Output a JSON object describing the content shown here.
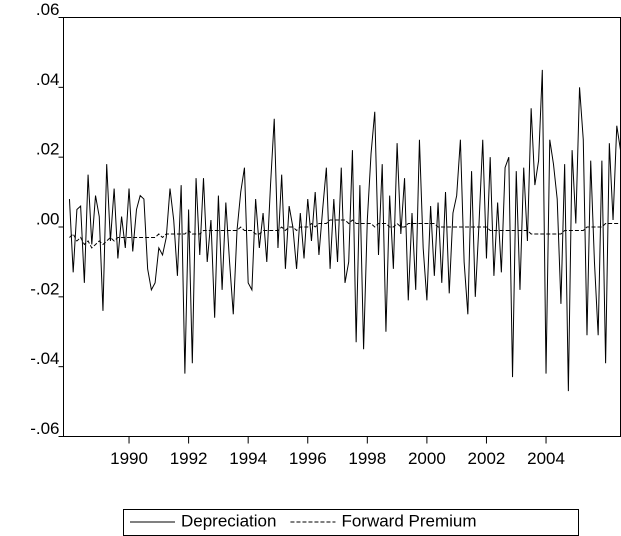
{
  "chart_data": {
    "type": "line",
    "x": [
      1988,
      1988.125,
      1988.25,
      1988.375,
      1988.5,
      1988.625,
      1988.75,
      1988.875,
      1989,
      1989.125,
      1989.25,
      1989.375,
      1989.5,
      1989.625,
      1989.75,
      1989.875,
      1990,
      1990.125,
      1990.25,
      1990.375,
      1990.5,
      1990.625,
      1990.75,
      1990.875,
      1991,
      1991.125,
      1991.25,
      1991.375,
      1991.5,
      1991.625,
      1991.75,
      1991.875,
      1992,
      1992.125,
      1992.25,
      1992.375,
      1992.5,
      1992.625,
      1992.75,
      1992.875,
      1993,
      1993.125,
      1993.25,
      1993.375,
      1993.5,
      1993.625,
      1993.75,
      1993.875,
      1994,
      1994.125,
      1994.25,
      1994.375,
      1994.5,
      1994.625,
      1994.75,
      1994.875,
      1995,
      1995.125,
      1995.25,
      1995.375,
      1995.5,
      1995.625,
      1995.75,
      1995.875,
      1996,
      1996.125,
      1996.25,
      1996.375,
      1996.5,
      1996.625,
      1996.75,
      1996.875,
      1997,
      1997.125,
      1997.25,
      1997.375,
      1997.5,
      1997.625,
      1997.75,
      1997.875,
      1998,
      1998.125,
      1998.25,
      1998.375,
      1998.5,
      1998.625,
      1998.75,
      1998.875,
      1999,
      1999.125,
      1999.25,
      1999.375,
      1999.5,
      1999.625,
      1999.75,
      1999.875,
      2000,
      2000.125,
      2000.25,
      2000.375,
      2000.5,
      2000.625,
      2000.75,
      2000.875,
      2001,
      2001.125,
      2001.25,
      2001.375,
      2001.5,
      2001.625,
      2001.75,
      2001.875,
      2002,
      2002.125,
      2002.25,
      2002.375,
      2002.5,
      2002.625,
      2002.75,
      2002.875,
      2003,
      2003.125,
      2003.25,
      2003.375,
      2003.5,
      2003.625,
      2003.75,
      2003.875,
      2004,
      2004.125,
      2004.25,
      2004.375,
      2004.5,
      2004.625,
      2004.75,
      2004.875,
      2005,
      2005.125,
      2005.25,
      2005.375,
      2005.5,
      2005.625,
      2005.75,
      2005.875,
      2006,
      2006.125,
      2006.25,
      2006.375,
      2006.5
    ],
    "series": [
      {
        "name": "Depreciation",
        "color": "#000000",
        "dash": "solid",
        "values": [
          0.008,
          -0.013,
          0.005,
          0.006,
          -0.016,
          0.015,
          -0.005,
          0.009,
          0.003,
          -0.024,
          0.018,
          -0.004,
          0.011,
          -0.009,
          0.003,
          -0.006,
          0.011,
          -0.007,
          0.005,
          0.009,
          0.008,
          -0.012,
          -0.018,
          -0.016,
          -0.006,
          -0.008,
          -0.003,
          0.011,
          0.002,
          -0.014,
          0.012,
          -0.042,
          0.005,
          -0.039,
          0.014,
          -0.008,
          0.014,
          -0.01,
          0.002,
          -0.026,
          0.009,
          -0.018,
          0.007,
          -0.01,
          -0.025,
          -0.001,
          0.01,
          0.017,
          -0.016,
          -0.018,
          0.008,
          -0.006,
          0.004,
          -0.01,
          0.012,
          0.031,
          -0.006,
          0.015,
          -0.012,
          0.006,
          0.0,
          -0.012,
          0.004,
          -0.009,
          0.008,
          -0.004,
          0.01,
          -0.008,
          0.005,
          0.017,
          -0.012,
          0.008,
          -0.01,
          0.017,
          -0.016,
          -0.01,
          0.022,
          -0.033,
          0.012,
          -0.035,
          0.002,
          0.021,
          0.033,
          -0.008,
          0.018,
          -0.03,
          0.009,
          -0.012,
          0.024,
          -0.002,
          0.014,
          -0.021,
          0.004,
          -0.018,
          0.025,
          -0.006,
          -0.021,
          0.006,
          -0.014,
          0.007,
          -0.016,
          0.01,
          -0.019,
          0.004,
          0.009,
          0.025,
          -0.01,
          -0.025,
          0.016,
          -0.02,
          0.001,
          0.025,
          -0.009,
          0.02,
          -0.014,
          0.007,
          -0.013,
          0.017,
          0.02,
          -0.043,
          0.016,
          -0.018,
          0.017,
          -0.004,
          0.034,
          0.012,
          0.019,
          0.045,
          -0.042,
          0.025,
          0.018,
          0.008,
          -0.022,
          0.018,
          -0.047,
          0.022,
          0.001,
          0.04,
          0.025,
          -0.031,
          0.019,
          -0.01,
          -0.031,
          0.019,
          -0.039,
          0.024,
          0.002,
          0.029,
          0.022
        ]
      },
      {
        "name": "Forward Premium",
        "color": "#000000",
        "dash": "dashed",
        "values": [
          -0.003,
          -0.002,
          -0.004,
          -0.003,
          -0.005,
          -0.004,
          -0.006,
          -0.005,
          -0.004,
          -0.005,
          -0.004,
          -0.003,
          -0.004,
          -0.003,
          -0.003,
          -0.003,
          -0.003,
          -0.003,
          -0.003,
          -0.003,
          -0.003,
          -0.003,
          -0.003,
          -0.003,
          -0.002,
          -0.003,
          -0.002,
          -0.002,
          -0.002,
          -0.002,
          -0.002,
          -0.002,
          -0.001,
          -0.002,
          -0.002,
          -0.002,
          -0.001,
          -0.001,
          -0.001,
          -0.001,
          -0.001,
          -0.001,
          -0.001,
          -0.001,
          -0.001,
          -0.001,
          0.0,
          -0.001,
          -0.001,
          -0.001,
          -0.002,
          -0.002,
          -0.001,
          -0.001,
          -0.001,
          -0.001,
          -0.001,
          0.0,
          -0.001,
          0.0,
          0.0,
          -0.001,
          0.0,
          0.0,
          0.0,
          0.001,
          0.0,
          0.001,
          0.001,
          0.001,
          0.002,
          0.002,
          0.002,
          0.002,
          0.002,
          0.001,
          0.002,
          0.001,
          0.001,
          0.001,
          0.001,
          0.001,
          0.0,
          0.001,
          0.001,
          0.001,
          0.0,
          0.0,
          0.001,
          0.0,
          0.0,
          0.001,
          0.001,
          0.001,
          0.001,
          0.001,
          0.001,
          0.001,
          0.001,
          0.0,
          0.0,
          0.0,
          0.0,
          0.0,
          0.0,
          0.0,
          0.0,
          0.0,
          0.0,
          0.0,
          0.0,
          0.0,
          0.0,
          -0.001,
          -0.001,
          -0.001,
          -0.001,
          -0.001,
          -0.001,
          -0.001,
          -0.001,
          -0.001,
          -0.001,
          -0.001,
          -0.002,
          -0.002,
          -0.002,
          -0.002,
          -0.002,
          -0.002,
          -0.002,
          -0.002,
          -0.002,
          -0.001,
          -0.001,
          -0.001,
          -0.001,
          -0.001,
          -0.001,
          0.0,
          0.0,
          0.0,
          0.0,
          0.0,
          0.001,
          0.001,
          0.001,
          0.001,
          0.001
        ]
      }
    ],
    "xlim": [
      1987.8,
      2006.5
    ],
    "xticks": [
      1990,
      1992,
      1994,
      1996,
      1998,
      2000,
      2002,
      2004
    ],
    "ylim": [
      -0.06,
      0.06
    ],
    "yticks": [
      {
        "value": -0.06,
        "label": "-.06"
      },
      {
        "value": -0.04,
        "label": "-.04"
      },
      {
        "value": -0.02,
        "label": "-.02"
      },
      {
        "value": 0,
        "label": ".00"
      },
      {
        "value": 0.02,
        "label": ".02"
      },
      {
        "value": 0.04,
        "label": ".04"
      },
      {
        "value": 0.06,
        "label": ".06"
      }
    ],
    "grid": false,
    "legend": "bottom"
  }
}
